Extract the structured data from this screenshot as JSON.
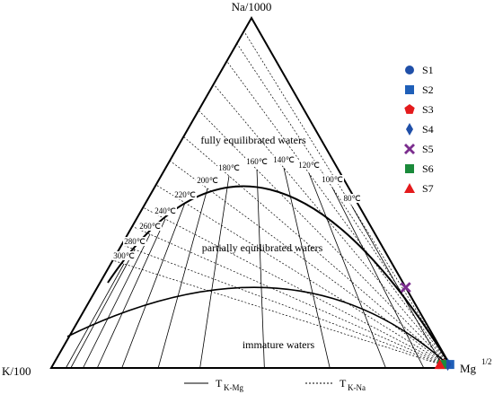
{
  "chart_data": {
    "type": "ternary",
    "corners": {
      "top": "Na/1000",
      "left": "K/100",
      "right": "Mg",
      "right_sup": "1/2"
    },
    "components": [
      "Na/1000",
      "K/100",
      "Mg"
    ],
    "regions": [
      "fully equilibrated waters",
      "partially  equilibrated waters",
      "immature waters"
    ],
    "isotherms": [
      "80℃",
      "100℃",
      "120℃",
      "140℃",
      "160℃",
      "180℃",
      "200℃",
      "220℃",
      "240℃",
      "260℃",
      "280℃",
      "300℃"
    ],
    "line_legend": [
      {
        "main": "T",
        "sub": "K-Mg"
      },
      {
        "main": "T",
        "sub": "K-Na"
      }
    ],
    "series": [
      {
        "name": "S1",
        "color": "#1f4fa8",
        "marker": "circle",
        "values": [
          1,
          1,
          98
        ]
      },
      {
        "name": "S2",
        "color": "#1f5fb8",
        "marker": "square",
        "values": [
          1,
          0,
          99
        ]
      },
      {
        "name": "S3",
        "color": "#e41a1c",
        "marker": "pentagon",
        "values": [
          1,
          1.5,
          97.5
        ]
      },
      {
        "name": "S4",
        "color": "#1f4fa8",
        "marker": "diamond",
        "values": [
          1,
          0.5,
          98.5
        ]
      },
      {
        "name": "S5",
        "color": "#7b2d8e",
        "marker": "x",
        "values": [
          23,
          0,
          77
        ]
      },
      {
        "name": "S6",
        "color": "#1a8a3a",
        "marker": "square",
        "values": [
          1,
          2,
          97
        ]
      },
      {
        "name": "S7",
        "color": "#e41a1c",
        "marker": "triangle",
        "values": [
          1,
          2.5,
          96.5
        ]
      }
    ]
  }
}
